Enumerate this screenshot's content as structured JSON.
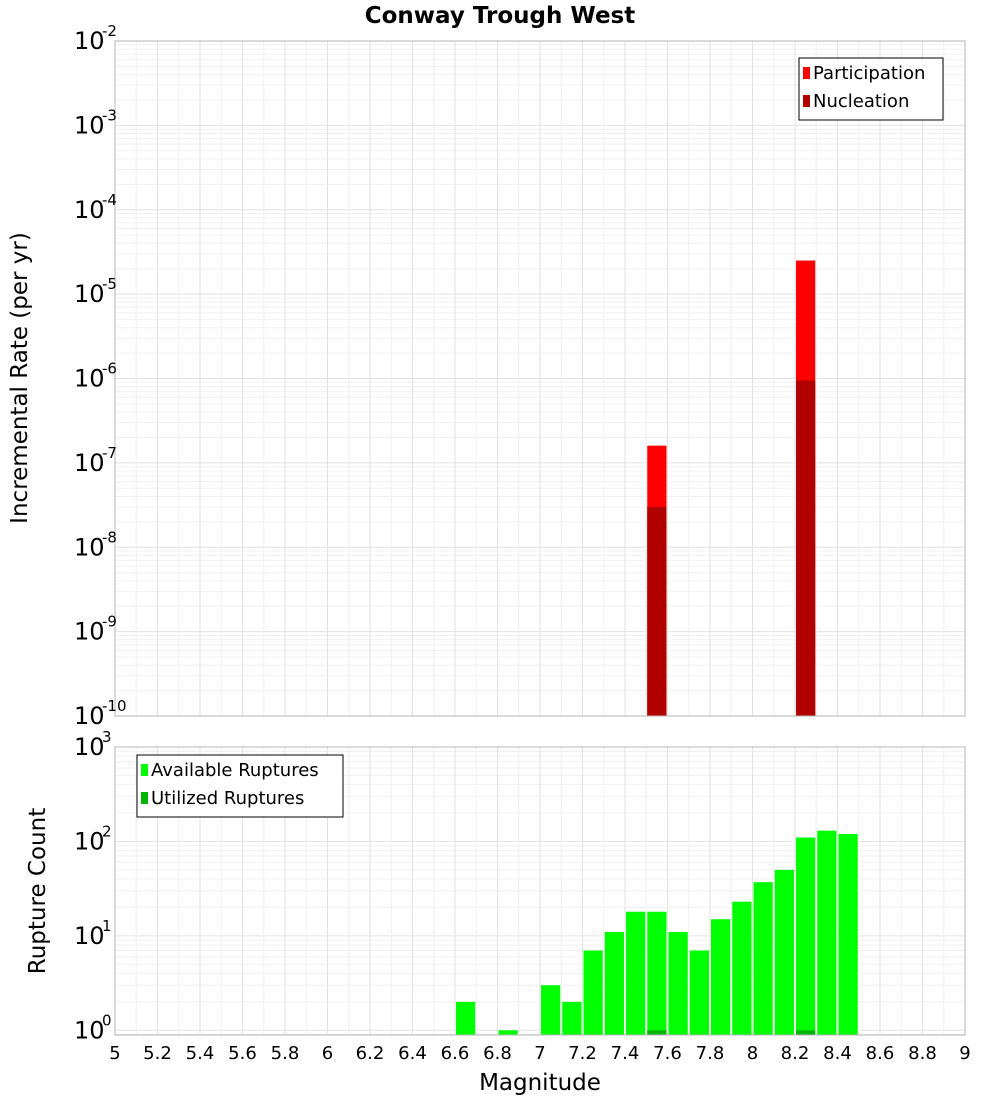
{
  "chart_data": [
    {
      "type": "bar",
      "panel": "top",
      "title": "Conway Trough West",
      "ylabel": "Incremental Rate (per yr)",
      "yscale": "log",
      "ylim_exp": [
        -10,
        -2
      ],
      "ytick_exps": [
        -10,
        -9,
        -8,
        -7,
        -6,
        -5,
        -4,
        -3,
        -2
      ],
      "ytick_labels": [
        "10",
        "10",
        "10",
        "10",
        "10",
        "10",
        "10",
        "10",
        "10"
      ],
      "ytick_exp_labels": [
        "-10",
        "-9",
        "-8",
        "-7",
        "-6",
        "-5",
        "-4",
        "-3",
        "-2"
      ],
      "xlim": [
        5,
        9
      ],
      "bar_width": 0.1,
      "series": [
        {
          "name": "Participation",
          "color": "#ff0000",
          "x": [
            7.55,
            8.25
          ],
          "values": [
            1.6e-07,
            2.5e-05
          ]
        },
        {
          "name": "Nucleation",
          "color": "#b00000",
          "x": [
            7.55,
            8.25
          ],
          "values": [
            3e-08,
            9.5e-07
          ]
        }
      ],
      "legend": {
        "position": "top-right",
        "entries": [
          "Participation",
          "Nucleation"
        ]
      }
    },
    {
      "type": "bar",
      "panel": "bottom",
      "ylabel": "Rupture Count",
      "xlabel": "Magnitude",
      "yscale": "log",
      "ylim_exp": [
        -0.05,
        3
      ],
      "ytick_exps": [
        0,
        1,
        2,
        3
      ],
      "ytick_labels": [
        "10",
        "10",
        "10",
        "10"
      ],
      "ytick_exp_labels": [
        "0",
        "1",
        "2",
        "3"
      ],
      "xlim": [
        5,
        9
      ],
      "xtick_labels": [
        "5",
        "5.2",
        "5.4",
        "5.6",
        "5.8",
        "6",
        "6.2",
        "6.4",
        "6.6",
        "6.8",
        "7",
        "7.2",
        "7.4",
        "7.6",
        "7.8",
        "8",
        "8.2",
        "8.4",
        "8.6",
        "8.8",
        "9"
      ],
      "bar_width": 0.1,
      "series": [
        {
          "name": "Available Ruptures",
          "color": "#00ff00",
          "x": [
            6.65,
            6.85,
            7.05,
            7.15,
            7.25,
            7.35,
            7.45,
            7.55,
            7.65,
            7.75,
            7.85,
            7.95,
            8.05,
            8.15,
            8.25,
            8.35,
            8.45
          ],
          "values": [
            2,
            1,
            3,
            2,
            7,
            11,
            18,
            18,
            11,
            7,
            15,
            23,
            37,
            50,
            110,
            130,
            120
          ]
        },
        {
          "name": "Utilized Ruptures",
          "color": "#00b400",
          "x": [
            7.55,
            8.25
          ],
          "values": [
            1,
            1
          ]
        }
      ],
      "legend": {
        "position": "top-left",
        "entries": [
          "Available Ruptures",
          "Utilized Ruptures"
        ]
      }
    }
  ]
}
